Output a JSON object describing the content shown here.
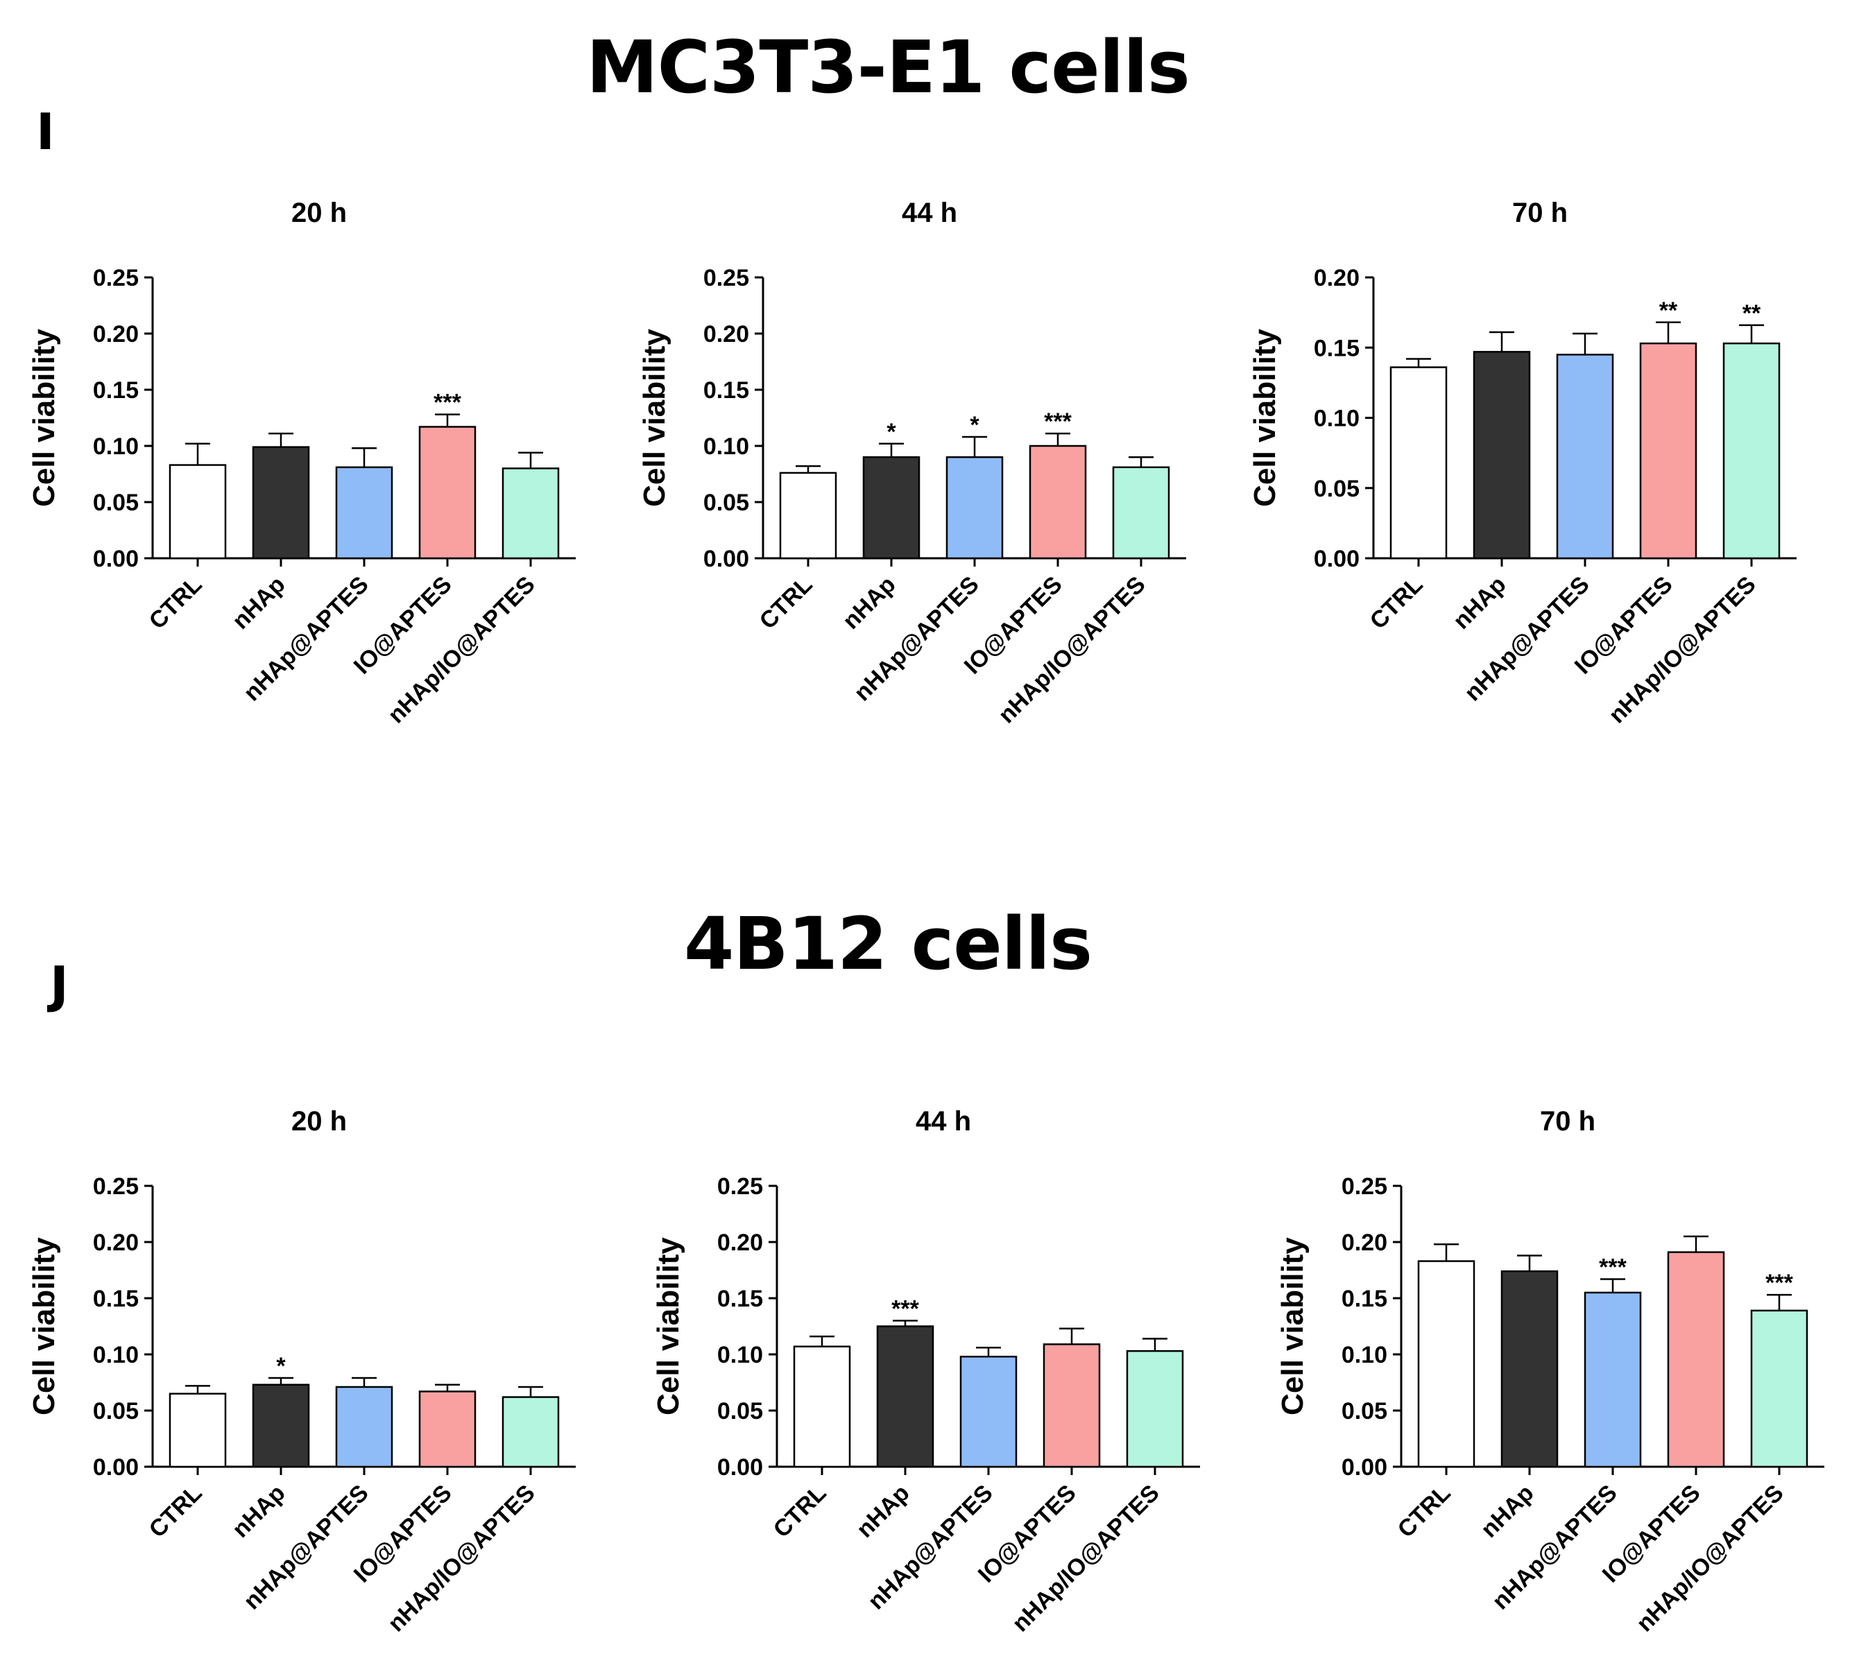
{
  "sections": [
    {
      "title": "MC3T3-E1 cells",
      "panel": "I"
    },
    {
      "title": "4B12 cells",
      "panel": "J"
    }
  ],
  "colors": {
    "CTRL": "#ffffff",
    "nHAp": "#333333",
    "nHAp@APTES": "#8fbcf7",
    "IO@APTES": "#f9a1a1",
    "nHAp/IO@APTES": "#b3f5de"
  },
  "chart_data": [
    {
      "type": "bar",
      "section": "MC3T3-E1 cells",
      "title": "20 h",
      "ylabel": "Cell viability",
      "xlabel": "",
      "categories": [
        "CTRL",
        "nHAp",
        "nHAp@APTES",
        "IO@APTES",
        "nHAp/IO@APTES"
      ],
      "values": [
        0.083,
        0.099,
        0.081,
        0.117,
        0.08
      ],
      "errors": [
        0.019,
        0.012,
        0.017,
        0.011,
        0.014
      ],
      "significance": [
        "",
        "",
        "",
        "***",
        ""
      ],
      "ylim": [
        0,
        0.25
      ],
      "yticks": [
        "0.00",
        "0.05",
        "0.10",
        "0.15",
        "0.20",
        "0.25"
      ]
    },
    {
      "type": "bar",
      "section": "MC3T3-E1 cells",
      "title": "44 h",
      "ylabel": "Cell viability",
      "xlabel": "",
      "categories": [
        "CTRL",
        "nHAp",
        "nHAp@APTES",
        "IO@APTES",
        "nHAp/IO@APTES"
      ],
      "values": [
        0.076,
        0.09,
        0.09,
        0.1,
        0.081
      ],
      "errors": [
        0.006,
        0.012,
        0.018,
        0.011,
        0.009
      ],
      "significance": [
        "",
        "*",
        "*",
        "***",
        ""
      ],
      "ylim": [
        0,
        0.25
      ],
      "yticks": [
        "0.00",
        "0.05",
        "0.10",
        "0.15",
        "0.20",
        "0.25"
      ]
    },
    {
      "type": "bar",
      "section": "MC3T3-E1 cells",
      "title": "70 h",
      "ylabel": "Cell viability",
      "xlabel": "",
      "categories": [
        "CTRL",
        "nHAp",
        "nHAp@APTES",
        "IO@APTES",
        "nHAp/IO@APTES"
      ],
      "values": [
        0.136,
        0.147,
        0.145,
        0.153,
        0.153
      ],
      "errors": [
        0.006,
        0.014,
        0.015,
        0.015,
        0.013
      ],
      "significance": [
        "",
        "",
        "",
        "**",
        "**"
      ],
      "ylim": [
        0,
        0.2
      ],
      "yticks": [
        "0.00",
        "0.05",
        "0.10",
        "0.15",
        "0.20"
      ]
    },
    {
      "type": "bar",
      "section": "4B12 cells",
      "title": "20 h",
      "ylabel": "Cell viability",
      "xlabel": "",
      "categories": [
        "CTRL",
        "nHAp",
        "nHAp@APTES",
        "IO@APTES",
        "nHAp/IO@APTES"
      ],
      "values": [
        0.065,
        0.073,
        0.071,
        0.067,
        0.062
      ],
      "errors": [
        0.007,
        0.006,
        0.008,
        0.006,
        0.009
      ],
      "significance": [
        "",
        "*",
        "",
        "",
        ""
      ],
      "ylim": [
        0,
        0.25
      ],
      "yticks": [
        "0.00",
        "0.05",
        "0.10",
        "0.15",
        "0.20",
        "0.25"
      ]
    },
    {
      "type": "bar",
      "section": "4B12 cells",
      "title": "44 h",
      "ylabel": "Cell viability",
      "xlabel": "",
      "categories": [
        "CTRL",
        "nHAp",
        "nHAp@APTES",
        "IO@APTES",
        "nHAp/IO@APTES"
      ],
      "values": [
        0.107,
        0.125,
        0.098,
        0.109,
        0.103
      ],
      "errors": [
        0.009,
        0.005,
        0.008,
        0.014,
        0.011
      ],
      "significance": [
        "",
        "***",
        "",
        "",
        ""
      ],
      "ylim": [
        0,
        0.25
      ],
      "yticks": [
        "0.00",
        "0.05",
        "0.10",
        "0.15",
        "0.20",
        "0.25"
      ]
    },
    {
      "type": "bar",
      "section": "4B12 cells",
      "title": "70 h",
      "ylabel": "Cell viability",
      "xlabel": "",
      "categories": [
        "CTRL",
        "nHAp",
        "nHAp@APTES",
        "IO@APTES",
        "nHAp/IO@APTES"
      ],
      "values": [
        0.183,
        0.174,
        0.155,
        0.191,
        0.139
      ],
      "errors": [
        0.015,
        0.014,
        0.012,
        0.014,
        0.014
      ],
      "significance": [
        "",
        "",
        "***",
        "",
        "***"
      ],
      "ylim": [
        0,
        0.25
      ],
      "yticks": [
        "0.00",
        "0.05",
        "0.10",
        "0.15",
        "0.20",
        "0.25"
      ]
    }
  ]
}
